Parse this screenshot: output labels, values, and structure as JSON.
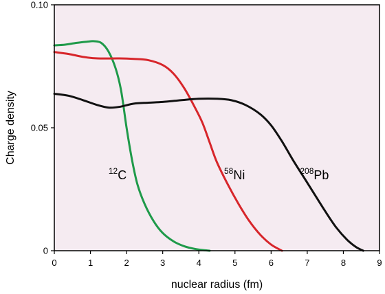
{
  "chart_data": {
    "type": "line",
    "title": "",
    "xlabel": "nuclear radius (fm)",
    "ylabel": "Charge density",
    "xlim": [
      0,
      9
    ],
    "ylim": [
      0,
      0.1
    ],
    "x_ticks": [
      "0",
      "1",
      "2",
      "3",
      "4",
      "5",
      "6",
      "7",
      "8",
      "9"
    ],
    "y_ticks": [
      {
        "value": 0,
        "label": "0"
      },
      {
        "value": 0.05,
        "label": "0.05"
      },
      {
        "value": 0.1,
        "label": "0.10"
      }
    ],
    "grid": false,
    "legend": "none",
    "background_color": "#f5ebf1",
    "series": [
      {
        "name": "12C",
        "label_mass": "12",
        "label_symbol": "C",
        "label_at": [
          1.5,
          0.029
        ],
        "color": "#1f9a4a",
        "points": [
          [
            0,
            0.0835
          ],
          [
            0.3,
            0.0838
          ],
          [
            0.6,
            0.0845
          ],
          [
            0.9,
            0.085
          ],
          [
            1.1,
            0.0852
          ],
          [
            1.3,
            0.0845
          ],
          [
            1.5,
            0.081
          ],
          [
            1.7,
            0.074
          ],
          [
            1.85,
            0.065
          ],
          [
            2.0,
            0.05
          ],
          [
            2.15,
            0.037
          ],
          [
            2.3,
            0.027
          ],
          [
            2.5,
            0.019
          ],
          [
            2.75,
            0.012
          ],
          [
            3.0,
            0.0072
          ],
          [
            3.3,
            0.0038
          ],
          [
            3.6,
            0.0018
          ],
          [
            3.9,
            0.0007
          ],
          [
            4.15,
            0.0002
          ],
          [
            4.3,
            0.0
          ]
        ]
      },
      {
        "name": "58Ni",
        "label_mass": "58",
        "label_symbol": "Ni",
        "label_at": [
          4.7,
          0.029
        ],
        "color": "#d7262b",
        "points": [
          [
            0,
            0.0808
          ],
          [
            0.4,
            0.08
          ],
          [
            0.8,
            0.0788
          ],
          [
            1.2,
            0.0782
          ],
          [
            1.8,
            0.0782
          ],
          [
            2.2,
            0.078
          ],
          [
            2.6,
            0.0775
          ],
          [
            3.0,
            0.0755
          ],
          [
            3.3,
            0.072
          ],
          [
            3.6,
            0.066
          ],
          [
            3.9,
            0.058
          ],
          [
            4.1,
            0.052
          ],
          [
            4.3,
            0.044
          ],
          [
            4.5,
            0.036
          ],
          [
            4.8,
            0.027
          ],
          [
            5.1,
            0.019
          ],
          [
            5.4,
            0.012
          ],
          [
            5.7,
            0.0065
          ],
          [
            6.0,
            0.0025
          ],
          [
            6.3,
            0.0
          ]
        ]
      },
      {
        "name": "208Pb",
        "label_mass": "208",
        "label_symbol": "Pb",
        "label_at": [
          6.8,
          0.029
        ],
        "color": "#111111",
        "points": [
          [
            0,
            0.0638
          ],
          [
            0.4,
            0.063
          ],
          [
            0.8,
            0.0612
          ],
          [
            1.2,
            0.0592
          ],
          [
            1.5,
            0.0582
          ],
          [
            1.8,
            0.0585
          ],
          [
            2.2,
            0.0598
          ],
          [
            2.6,
            0.0602
          ],
          [
            3.0,
            0.0605
          ],
          [
            3.5,
            0.0612
          ],
          [
            4.0,
            0.0618
          ],
          [
            4.5,
            0.0618
          ],
          [
            4.9,
            0.0612
          ],
          [
            5.3,
            0.0592
          ],
          [
            5.7,
            0.0555
          ],
          [
            6.0,
            0.051
          ],
          [
            6.3,
            0.0445
          ],
          [
            6.6,
            0.037
          ],
          [
            6.9,
            0.03
          ],
          [
            7.2,
            0.023
          ],
          [
            7.5,
            0.016
          ],
          [
            7.8,
            0.0095
          ],
          [
            8.1,
            0.0045
          ],
          [
            8.35,
            0.0015
          ],
          [
            8.55,
            0.0
          ]
        ]
      }
    ]
  }
}
